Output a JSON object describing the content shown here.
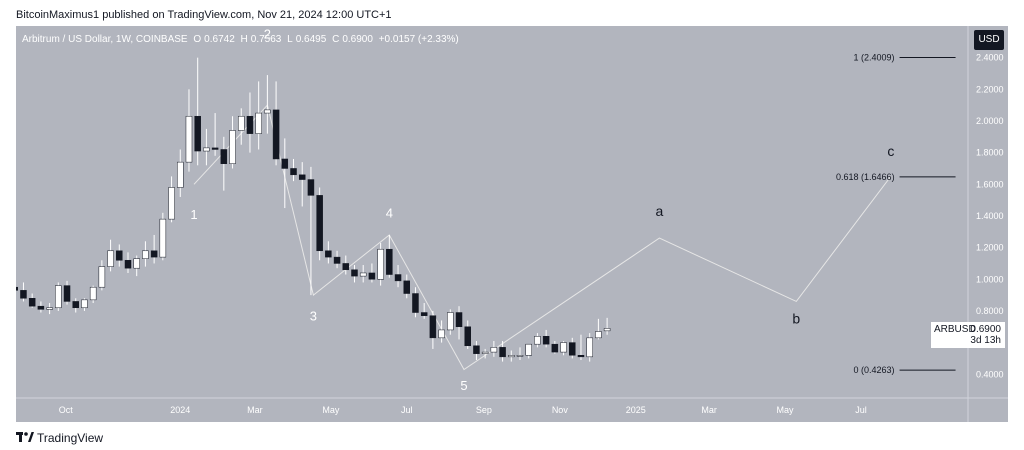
{
  "publisher_line": "BitcoinMaximus1 published on TradingView.com, Nov 21, 2024 12:00 UTC+1",
  "header": {
    "symbol": "Arbitrum / US Dollar, 1W, COINBASE",
    "open_label": "O",
    "open": "0.6742",
    "high_label": "H",
    "high": "0.7563",
    "low_label": "L",
    "low": "0.6495",
    "close_label": "C",
    "close": "0.6900",
    "change": "+0.0157 (+2.33%)",
    "accent": "#ffffff"
  },
  "currency_button": "USD",
  "price_tag": {
    "symbol": "ARBUSD",
    "value": "0.6900",
    "countdown": "3d 13h"
  },
  "footer": {
    "logo_icon": "tradingview-logo-icon",
    "brand": "TradingView"
  },
  "chart_data": {
    "type": "candlestick",
    "title": "Arbitrum / US Dollar, 1W, COINBASE",
    "y_axis": {
      "ticks": [
        "2.4000",
        "2.2000",
        "2.0000",
        "1.8000",
        "1.6000",
        "1.4000",
        "1.2000",
        "1.0000",
        "0.8000",
        "0.6000",
        "0.4000"
      ],
      "ylim": [
        0.25,
        2.6
      ]
    },
    "x_axis": {
      "labels": [
        "Oct",
        "2024",
        "Mar",
        "May",
        "Jul",
        "Sep",
        "Nov",
        "2025",
        "Mar",
        "May",
        "Jul"
      ],
      "label_dates": [
        "2023-10-01",
        "2024-01-01",
        "2024-03-01",
        "2024-05-01",
        "2024-07-01",
        "2024-09-01",
        "2024-11-01",
        "2025-01-01",
        "2025-03-01",
        "2025-05-01",
        "2025-07-01"
      ],
      "xlim": [
        "2023-08-22",
        "2025-09-25"
      ]
    },
    "candles": [
      {
        "t": "2023-08-21",
        "o": 0.95,
        "h": 1.04,
        "l": 0.9,
        "c": 0.93
      },
      {
        "t": "2023-08-28",
        "o": 0.93,
        "h": 0.98,
        "l": 0.86,
        "c": 0.88
      },
      {
        "t": "2023-09-04",
        "o": 0.88,
        "h": 0.91,
        "l": 0.82,
        "c": 0.83
      },
      {
        "t": "2023-09-11",
        "o": 0.83,
        "h": 0.86,
        "l": 0.79,
        "c": 0.81
      },
      {
        "t": "2023-09-18",
        "o": 0.81,
        "h": 0.85,
        "l": 0.78,
        "c": 0.82
      },
      {
        "t": "2023-09-25",
        "o": 0.82,
        "h": 0.98,
        "l": 0.8,
        "c": 0.96
      },
      {
        "t": "2023-10-02",
        "o": 0.96,
        "h": 0.99,
        "l": 0.84,
        "c": 0.86
      },
      {
        "t": "2023-10-09",
        "o": 0.86,
        "h": 0.88,
        "l": 0.79,
        "c": 0.82
      },
      {
        "t": "2023-10-16",
        "o": 0.82,
        "h": 0.88,
        "l": 0.8,
        "c": 0.87
      },
      {
        "t": "2023-10-23",
        "o": 0.87,
        "h": 0.96,
        "l": 0.85,
        "c": 0.95
      },
      {
        "t": "2023-10-30",
        "o": 0.95,
        "h": 1.12,
        "l": 0.93,
        "c": 1.08
      },
      {
        "t": "2023-11-06",
        "o": 1.08,
        "h": 1.25,
        "l": 1.05,
        "c": 1.18
      },
      {
        "t": "2023-11-13",
        "o": 1.18,
        "h": 1.22,
        "l": 1.08,
        "c": 1.12
      },
      {
        "t": "2023-11-20",
        "o": 1.12,
        "h": 1.17,
        "l": 1.04,
        "c": 1.07
      },
      {
        "t": "2023-11-27",
        "o": 1.07,
        "h": 1.15,
        "l": 1.02,
        "c": 1.13
      },
      {
        "t": "2023-12-04",
        "o": 1.13,
        "h": 1.24,
        "l": 1.08,
        "c": 1.18
      },
      {
        "t": "2023-12-11",
        "o": 1.18,
        "h": 1.28,
        "l": 1.1,
        "c": 1.14
      },
      {
        "t": "2023-12-18",
        "o": 1.14,
        "h": 1.42,
        "l": 1.12,
        "c": 1.38
      },
      {
        "t": "2023-12-25",
        "o": 1.38,
        "h": 1.65,
        "l": 1.36,
        "c": 1.58
      },
      {
        "t": "2024-01-01",
        "o": 1.58,
        "h": 1.82,
        "l": 1.52,
        "c": 1.74
      },
      {
        "t": "2024-01-08",
        "o": 1.74,
        "h": 2.2,
        "l": 1.68,
        "c": 2.03
      },
      {
        "t": "2024-01-15",
        "o": 2.03,
        "h": 2.4,
        "l": 1.72,
        "c": 1.81
      },
      {
        "t": "2024-01-22",
        "o": 1.81,
        "h": 1.95,
        "l": 1.72,
        "c": 1.83
      },
      {
        "t": "2024-01-29",
        "o": 1.83,
        "h": 2.05,
        "l": 1.78,
        "c": 1.82
      },
      {
        "t": "2024-02-05",
        "o": 1.82,
        "h": 1.9,
        "l": 1.56,
        "c": 1.73
      },
      {
        "t": "2024-02-12",
        "o": 1.73,
        "h": 2.03,
        "l": 1.7,
        "c": 1.94
      },
      {
        "t": "2024-02-19",
        "o": 1.94,
        "h": 2.08,
        "l": 1.85,
        "c": 2.03
      },
      {
        "t": "2024-02-26",
        "o": 2.03,
        "h": 2.18,
        "l": 1.8,
        "c": 1.92
      },
      {
        "t": "2024-03-04",
        "o": 1.92,
        "h": 2.25,
        "l": 1.82,
        "c": 2.05
      },
      {
        "t": "2024-03-11",
        "o": 2.05,
        "h": 2.29,
        "l": 1.92,
        "c": 2.07
      },
      {
        "t": "2024-03-18",
        "o": 2.07,
        "h": 2.25,
        "l": 1.72,
        "c": 1.76
      },
      {
        "t": "2024-03-25",
        "o": 1.76,
        "h": 1.89,
        "l": 1.45,
        "c": 1.7
      },
      {
        "t": "2024-04-01",
        "o": 1.7,
        "h": 1.76,
        "l": 1.62,
        "c": 1.66
      },
      {
        "t": "2024-04-08",
        "o": 1.66,
        "h": 1.74,
        "l": 1.46,
        "c": 1.63
      },
      {
        "t": "2024-04-15",
        "o": 1.63,
        "h": 1.71,
        "l": 0.9,
        "c": 1.53
      },
      {
        "t": "2024-04-22",
        "o": 1.53,
        "h": 1.58,
        "l": 1.12,
        "c": 1.18
      },
      {
        "t": "2024-04-29",
        "o": 1.18,
        "h": 1.24,
        "l": 1.1,
        "c": 1.14
      },
      {
        "t": "2024-05-06",
        "o": 1.14,
        "h": 1.18,
        "l": 1.07,
        "c": 1.1
      },
      {
        "t": "2024-05-13",
        "o": 1.1,
        "h": 1.15,
        "l": 1.03,
        "c": 1.06
      },
      {
        "t": "2024-05-20",
        "o": 1.06,
        "h": 1.09,
        "l": 0.98,
        "c": 1.02
      },
      {
        "t": "2024-05-27",
        "o": 1.02,
        "h": 1.09,
        "l": 0.98,
        "c": 1.04
      },
      {
        "t": "2024-06-03",
        "o": 1.04,
        "h": 1.1,
        "l": 0.98,
        "c": 1.0
      },
      {
        "t": "2024-06-10",
        "o": 1.0,
        "h": 1.23,
        "l": 0.96,
        "c": 1.19
      },
      {
        "t": "2024-06-17",
        "o": 1.19,
        "h": 1.28,
        "l": 1.01,
        "c": 1.03
      },
      {
        "t": "2024-06-24",
        "o": 1.03,
        "h": 1.09,
        "l": 0.95,
        "c": 0.99
      },
      {
        "t": "2024-07-01",
        "o": 0.99,
        "h": 1.03,
        "l": 0.88,
        "c": 0.91
      },
      {
        "t": "2024-07-08",
        "o": 0.91,
        "h": 0.95,
        "l": 0.76,
        "c": 0.79
      },
      {
        "t": "2024-07-15",
        "o": 0.79,
        "h": 0.85,
        "l": 0.75,
        "c": 0.77
      },
      {
        "t": "2024-07-22",
        "o": 0.77,
        "h": 0.8,
        "l": 0.56,
        "c": 0.63
      },
      {
        "t": "2024-07-29",
        "o": 0.63,
        "h": 0.74,
        "l": 0.6,
        "c": 0.68
      },
      {
        "t": "2024-08-05",
        "o": 0.68,
        "h": 0.81,
        "l": 0.65,
        "c": 0.79
      },
      {
        "t": "2024-08-12",
        "o": 0.79,
        "h": 0.83,
        "l": 0.62,
        "c": 0.7
      },
      {
        "t": "2024-08-19",
        "o": 0.7,
        "h": 0.74,
        "l": 0.56,
        "c": 0.58
      },
      {
        "t": "2024-08-26",
        "o": 0.58,
        "h": 0.61,
        "l": 0.49,
        "c": 0.53
      },
      {
        "t": "2024-09-02",
        "o": 0.53,
        "h": 0.56,
        "l": 0.5,
        "c": 0.54
      },
      {
        "t": "2024-09-09",
        "o": 0.54,
        "h": 0.61,
        "l": 0.51,
        "c": 0.57
      },
      {
        "t": "2024-09-16",
        "o": 0.57,
        "h": 0.61,
        "l": 0.48,
        "c": 0.51
      },
      {
        "t": "2024-09-23",
        "o": 0.51,
        "h": 0.55,
        "l": 0.48,
        "c": 0.52
      },
      {
        "t": "2024-09-30",
        "o": 0.52,
        "h": 0.57,
        "l": 0.49,
        "c": 0.52
      },
      {
        "t": "2024-10-07",
        "o": 0.52,
        "h": 0.59,
        "l": 0.5,
        "c": 0.59
      },
      {
        "t": "2024-10-14",
        "o": 0.59,
        "h": 0.66,
        "l": 0.57,
        "c": 0.64
      },
      {
        "t": "2024-10-21",
        "o": 0.64,
        "h": 0.68,
        "l": 0.57,
        "c": 0.59
      },
      {
        "t": "2024-10-28",
        "o": 0.59,
        "h": 0.61,
        "l": 0.53,
        "c": 0.54
      },
      {
        "t": "2024-11-04",
        "o": 0.54,
        "h": 0.61,
        "l": 0.52,
        "c": 0.6
      },
      {
        "t": "2024-11-11",
        "o": 0.6,
        "h": 0.63,
        "l": 0.5,
        "c": 0.52
      },
      {
        "t": "2024-11-18",
        "o": 0.52,
        "h": 0.65,
        "l": 0.49,
        "c": 0.51
      },
      {
        "t": "2024-11-25",
        "o": 0.51,
        "h": 0.66,
        "l": 0.48,
        "c": 0.63
      },
      {
        "t": "2024-12-02",
        "o": 0.63,
        "h": 0.75,
        "l": 0.62,
        "c": 0.67
      },
      {
        "t": "2024-12-09",
        "o": 0.6742,
        "h": 0.7563,
        "l": 0.6495,
        "c": 0.69
      }
    ],
    "wave_path": [
      {
        "t": "2024-01-12",
        "v": 1.6
      },
      {
        "t": "2024-03-11",
        "v": 2.1
      },
      {
        "t": "2024-04-17",
        "v": 0.9
      },
      {
        "t": "2024-06-17",
        "v": 1.28
      },
      {
        "t": "2024-08-16",
        "v": 0.43
      },
      {
        "t": "2025-01-20",
        "v": 1.26
      },
      {
        "t": "2025-05-10",
        "v": 0.86
      },
      {
        "t": "2025-07-25",
        "v": 1.65
      }
    ],
    "wave_labels": [
      {
        "label": "1",
        "t": "2024-01-12",
        "v": 1.38
      },
      {
        "label": "2",
        "t": "2024-03-11",
        "v": 2.52
      },
      {
        "label": "3",
        "t": "2024-04-17",
        "v": 0.74
      },
      {
        "label": "4",
        "t": "2024-06-17",
        "v": 1.39
      },
      {
        "label": "5",
        "t": "2024-08-16",
        "v": 0.3
      },
      {
        "label": "a",
        "t": "2025-01-20",
        "v": 1.4
      },
      {
        "label": "b",
        "t": "2025-05-10",
        "v": 0.72
      },
      {
        "label": "c",
        "t": "2025-07-25",
        "v": 1.78
      }
    ],
    "fib_levels": [
      {
        "label": "1 (2.4009)",
        "value": 2.4009
      },
      {
        "label": "0.618 (1.6466)",
        "value": 1.6466
      },
      {
        "label": "0 (0.4263)",
        "value": 0.4263
      }
    ],
    "colors": {
      "background": "#b2b5be",
      "up_body": "#ffffff",
      "down_body": "#131722",
      "wick": "#ffffff",
      "wave_line": "#e6e6e6",
      "label": "#ffffff",
      "fib_line": "#131722",
      "axis_text": "#ffffff"
    }
  }
}
